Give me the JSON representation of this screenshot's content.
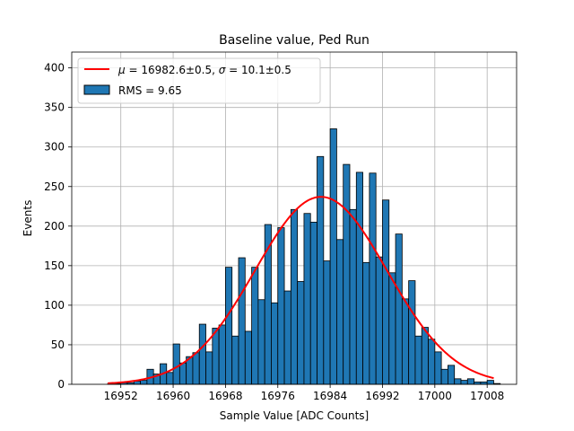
{
  "chart_data": {
    "type": "bar",
    "title": "Baseline value, Ped Run",
    "xlabel": "Sample Value [ADC Counts]",
    "ylabel": "Events",
    "xlim": [
      16944.5,
      17012.5
    ],
    "ylim": [
      0,
      420
    ],
    "xticks": [
      16952,
      16960,
      16968,
      16976,
      16984,
      16992,
      17000,
      17008
    ],
    "yticks": [
      0,
      50,
      100,
      150,
      200,
      250,
      300,
      350,
      400
    ],
    "grid": true,
    "legend_position": "top-left",
    "bins": {
      "start": 16950,
      "width": 1,
      "counts": [
        1,
        1,
        2,
        2,
        4,
        5,
        19,
        13,
        26,
        15,
        51,
        27,
        35,
        40,
        76,
        41,
        71,
        75,
        148,
        61,
        160,
        67,
        148,
        107,
        202,
        103,
        198,
        118,
        221,
        130,
        216,
        205,
        288,
        156,
        323,
        183,
        278,
        221,
        268,
        154,
        267,
        161,
        233,
        141,
        190,
        108,
        131,
        61,
        72,
        57,
        41,
        19,
        24,
        7,
        5,
        7,
        3,
        3,
        5,
        1
      ]
    },
    "series": [
      {
        "name": "RMS = 9.65",
        "kind": "histogram",
        "color": "#1f77b4"
      },
      {
        "name": "$\\mu = 16982.6\\pm0.5$, $\\sigma = 10.1\\pm0.5$",
        "kind": "gaussian-fit",
        "color": "#ff0000"
      }
    ],
    "fit": {
      "mu": 16982.6,
      "sigma": 10.1,
      "amplitude": 237,
      "x_start": 16950,
      "x_end": 17009
    },
    "legend": [
      {
        "label_mu_prefix": "μ",
        "label_mu_text": " = 16982.6±0.5, ",
        "label_sigma_prefix": "σ",
        "label_sigma_text": " = 10.1±0.5",
        "kind": "line",
        "color": "#ff0000"
      },
      {
        "label": "RMS = 9.65",
        "kind": "patch",
        "color": "#1f77b4"
      }
    ]
  }
}
